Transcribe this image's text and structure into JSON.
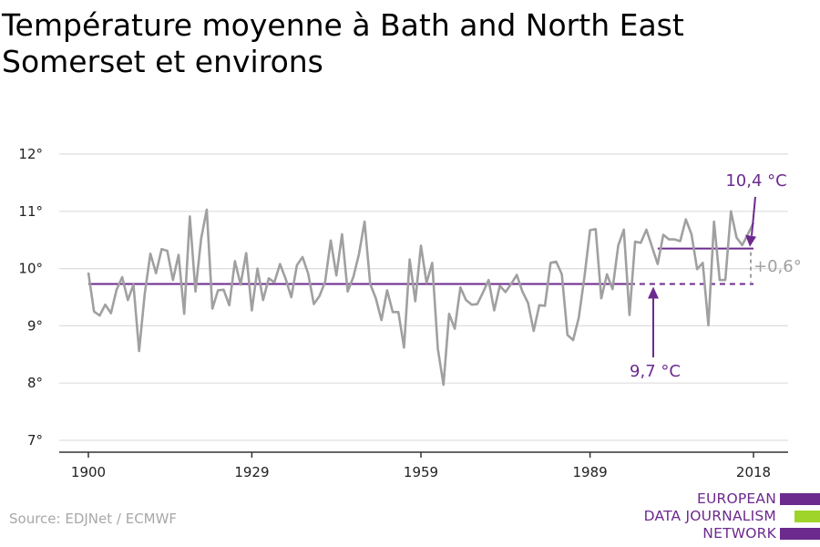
{
  "title": "Température moyenne à Bath and North East Somerset et environs",
  "source": "Source: EDJNet / ECMWF",
  "logo": {
    "lines": [
      "EUROPEAN",
      "DATA JOURNALISM",
      "NETWORK"
    ],
    "colors": [
      "#6c2a8e",
      "#9fd42b",
      "#6c2a8e"
    ]
  },
  "colors": {
    "series": "#a0a0a0",
    "baseline": "#6c2a8e",
    "grid": "#dddddd",
    "axis": "#333333"
  },
  "chart_data": {
    "type": "line",
    "xlim": [
      1900,
      2018
    ],
    "ylim": [
      7,
      12
    ],
    "x_ticks": [
      1900,
      1929,
      1959,
      1989,
      2018
    ],
    "y_ticks": [
      7,
      8,
      9,
      10,
      11,
      12
    ],
    "y_tick_labels": [
      "7°",
      "8°",
      "9°",
      "10°",
      "11°",
      "12°"
    ],
    "series": [
      {
        "x_start": 1900,
        "values": [
          9.93,
          9.25,
          9.18,
          9.37,
          9.22,
          9.63,
          9.85,
          9.45,
          9.72,
          8.56,
          9.56,
          10.26,
          9.92,
          10.34,
          10.31,
          9.8,
          10.24,
          9.21,
          10.91,
          9.6,
          10.52,
          11.03,
          9.3,
          9.62,
          9.63,
          9.36,
          10.13,
          9.72,
          10.27,
          9.27,
          10.0,
          9.45,
          9.83,
          9.76,
          10.08,
          9.82,
          9.5,
          10.06,
          10.2,
          9.91,
          9.38,
          9.52,
          9.77,
          10.49,
          9.88,
          10.6,
          9.6,
          9.85,
          10.25,
          10.82,
          9.73,
          9.48,
          9.1,
          9.62,
          9.24,
          9.24,
          8.62,
          10.16,
          9.43,
          10.4,
          9.75,
          10.1,
          8.6,
          7.97,
          9.21,
          8.95,
          9.67,
          9.45,
          9.37,
          9.38,
          9.58,
          9.8,
          9.27,
          9.7,
          9.59,
          9.73,
          9.89,
          9.6,
          9.4,
          8.91,
          9.36,
          9.35,
          10.1,
          10.12,
          9.9,
          8.84,
          8.75,
          9.14,
          9.85,
          10.67,
          10.69,
          9.48,
          9.9,
          9.64,
          10.4,
          10.68,
          9.19,
          10.47,
          10.45,
          10.68,
          10.38,
          10.08,
          10.59,
          10.51,
          10.51,
          10.48,
          10.86,
          10.6,
          9.99,
          10.1,
          9.01,
          10.82,
          9.8,
          9.8,
          11.0,
          10.54,
          10.41,
          10.6,
          10.8
        ]
      }
    ],
    "baseline": {
      "value": 9.73,
      "x_start": 1900,
      "x_end": 1996,
      "x_end_dashed": 2018
    },
    "recent": {
      "value": 10.35,
      "x_start": 2001,
      "x_end": 2018
    },
    "annotations": {
      "baseline_label": "9,7 °C",
      "recent_label": "10,4 °C",
      "delta_label": "+0,6°"
    }
  }
}
